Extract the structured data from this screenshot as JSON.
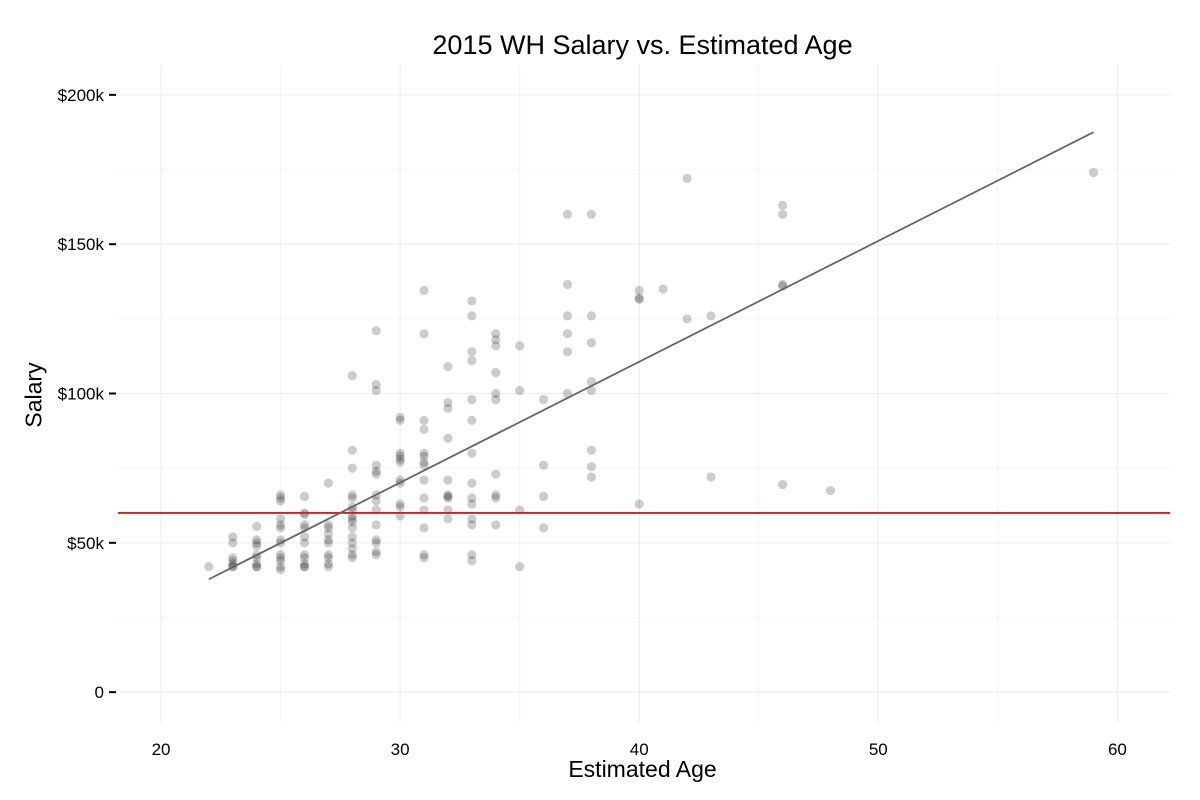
{
  "chart_data": {
    "type": "scatter",
    "title": "2015 WH Salary vs. Estimated Age",
    "xlabel": "Estimated Age",
    "ylabel": "Salary",
    "xlim": [
      18.2,
      62.2
    ],
    "ylim": [
      -10000,
      210000
    ],
    "x_ticks": [
      20,
      30,
      40,
      50,
      60
    ],
    "x_tick_labels": [
      "20",
      "30",
      "40",
      "50",
      "60"
    ],
    "y_ticks": [
      0,
      50000,
      100000,
      150000,
      200000
    ],
    "y_tick_labels": [
      "0",
      "$50k",
      "$100k",
      "$150k",
      "$200k"
    ],
    "grid": true,
    "background": "#ffffff",
    "point_color": "#000000",
    "point_opacity": 0.2,
    "reference_line": {
      "y": 60000,
      "color": "#dd1c1c"
    },
    "trend_line": {
      "x": [
        22,
        59
      ],
      "y": [
        37800,
        187500
      ],
      "color": "#666666"
    },
    "points": [
      [
        22,
        42000
      ],
      [
        23,
        52000
      ],
      [
        23,
        50000
      ],
      [
        23,
        45000
      ],
      [
        23,
        44000
      ],
      [
        23,
        43000
      ],
      [
        23,
        42000
      ],
      [
        23,
        42000
      ],
      [
        24,
        55500
      ],
      [
        24,
        51000
      ],
      [
        24,
        50000
      ],
      [
        24,
        49000
      ],
      [
        24,
        46000
      ],
      [
        24,
        45000
      ],
      [
        24,
        43000
      ],
      [
        24,
        42000
      ],
      [
        24,
        42000
      ],
      [
        25,
        66000
      ],
      [
        25,
        65000
      ],
      [
        25,
        64000
      ],
      [
        25,
        58000
      ],
      [
        25,
        56000
      ],
      [
        25,
        55000
      ],
      [
        25,
        51000
      ],
      [
        25,
        50000
      ],
      [
        25,
        46000
      ],
      [
        25,
        45000
      ],
      [
        25,
        44000
      ],
      [
        25,
        42000
      ],
      [
        25,
        41000
      ],
      [
        26,
        65500
      ],
      [
        26,
        60000
      ],
      [
        26,
        59500
      ],
      [
        26,
        56000
      ],
      [
        26,
        55000
      ],
      [
        26,
        52000
      ],
      [
        26,
        50000
      ],
      [
        26,
        46000
      ],
      [
        26,
        45000
      ],
      [
        26,
        43000
      ],
      [
        26,
        42000
      ],
      [
        26,
        42000
      ],
      [
        27,
        70000
      ],
      [
        27,
        56000
      ],
      [
        27,
        55000
      ],
      [
        27,
        53000
      ],
      [
        27,
        51000
      ],
      [
        27,
        50000
      ],
      [
        27,
        46000
      ],
      [
        27,
        45000
      ],
      [
        27,
        43000
      ],
      [
        27,
        42000
      ],
      [
        28,
        106000
      ],
      [
        28,
        81000
      ],
      [
        28,
        75000
      ],
      [
        28,
        66000
      ],
      [
        28,
        65000
      ],
      [
        28,
        62000
      ],
      [
        28,
        61000
      ],
      [
        28,
        59000
      ],
      [
        28,
        58000
      ],
      [
        28,
        57000
      ],
      [
        28,
        55000
      ],
      [
        28,
        52000
      ],
      [
        28,
        50000
      ],
      [
        28,
        48000
      ],
      [
        28,
        46000
      ],
      [
        28,
        45000
      ],
      [
        29,
        121000
      ],
      [
        29,
        103000
      ],
      [
        29,
        101000
      ],
      [
        29,
        76000
      ],
      [
        29,
        74000
      ],
      [
        29,
        73000
      ],
      [
        29,
        66000
      ],
      [
        29,
        64000
      ],
      [
        29,
        61000
      ],
      [
        29,
        56000
      ],
      [
        29,
        51000
      ],
      [
        29,
        50000
      ],
      [
        29,
        47000
      ],
      [
        29,
        46000
      ],
      [
        30,
        92000
      ],
      [
        30,
        91000
      ],
      [
        30,
        80000
      ],
      [
        30,
        79000
      ],
      [
        30,
        78000
      ],
      [
        30,
        77000
      ],
      [
        30,
        71000
      ],
      [
        30,
        70000
      ],
      [
        30,
        63000
      ],
      [
        30,
        62000
      ],
      [
        30,
        59000
      ],
      [
        31,
        134500
      ],
      [
        31,
        120000
      ],
      [
        31,
        91000
      ],
      [
        31,
        88000
      ],
      [
        31,
        80000
      ],
      [
        31,
        79000
      ],
      [
        31,
        77000
      ],
      [
        31,
        76000
      ],
      [
        31,
        71000
      ],
      [
        31,
        65000
      ],
      [
        31,
        61000
      ],
      [
        31,
        55000
      ],
      [
        31,
        46000
      ],
      [
        31,
        45000
      ],
      [
        32,
        109000
      ],
      [
        32,
        97000
      ],
      [
        32,
        95000
      ],
      [
        32,
        85000
      ],
      [
        32,
        71000
      ],
      [
        32,
        66000
      ],
      [
        32,
        65500
      ],
      [
        32,
        65000
      ],
      [
        32,
        61000
      ],
      [
        32,
        58000
      ],
      [
        33,
        131000
      ],
      [
        33,
        126000
      ],
      [
        33,
        114000
      ],
      [
        33,
        111000
      ],
      [
        33,
        98000
      ],
      [
        33,
        91000
      ],
      [
        33,
        80000
      ],
      [
        33,
        70000
      ],
      [
        33,
        65000
      ],
      [
        33,
        63000
      ],
      [
        33,
        58000
      ],
      [
        33,
        56000
      ],
      [
        33,
        46000
      ],
      [
        33,
        44000
      ],
      [
        34,
        120000
      ],
      [
        34,
        118000
      ],
      [
        34,
        116000
      ],
      [
        34,
        107000
      ],
      [
        34,
        100000
      ],
      [
        34,
        98000
      ],
      [
        34,
        73000
      ],
      [
        34,
        66000
      ],
      [
        34,
        65000
      ],
      [
        34,
        56000
      ],
      [
        35,
        116000
      ],
      [
        35,
        101000
      ],
      [
        35,
        61000
      ],
      [
        35,
        42000
      ],
      [
        36,
        98000
      ],
      [
        36,
        76000
      ],
      [
        36,
        65500
      ],
      [
        36,
        55000
      ],
      [
        37,
        160000
      ],
      [
        37,
        136500
      ],
      [
        37,
        126000
      ],
      [
        37,
        120000
      ],
      [
        37,
        114000
      ],
      [
        37,
        100000
      ],
      [
        38,
        160000
      ],
      [
        38,
        126000
      ],
      [
        38,
        117000
      ],
      [
        38,
        104000
      ],
      [
        38,
        101000
      ],
      [
        38,
        81000
      ],
      [
        38,
        75500
      ],
      [
        38,
        72000
      ],
      [
        40,
        134500
      ],
      [
        40,
        132000
      ],
      [
        40,
        131500
      ],
      [
        40,
        63000
      ],
      [
        41,
        135000
      ],
      [
        42,
        172000
      ],
      [
        42,
        125000
      ],
      [
        43,
        126000
      ],
      [
        43,
        72000
      ],
      [
        46,
        163000
      ],
      [
        46,
        160000
      ],
      [
        46,
        136500
      ],
      [
        46,
        136000
      ],
      [
        46,
        69500
      ],
      [
        48,
        67500
      ],
      [
        59,
        174000
      ]
    ]
  }
}
